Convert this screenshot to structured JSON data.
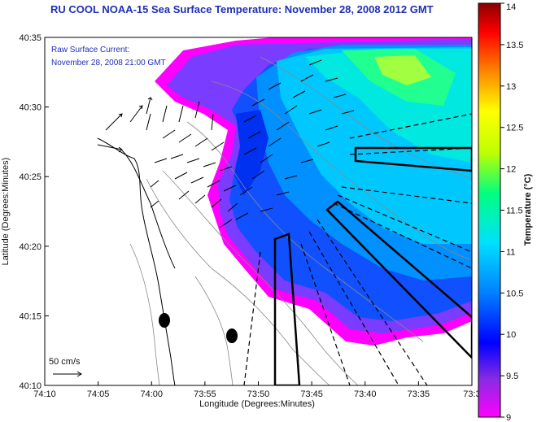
{
  "chart_data": {
    "type": "heatmap",
    "title": "RU COOL  NOAA-15  Sea Surface Temperature:  November 28, 2008 2012 GMT",
    "annotation_lines": [
      "Raw Surface Current:",
      "November 28, 2008 21:00 GMT"
    ],
    "xlabel": "Longitude (Degrees:Minutes)",
    "ylabel": "Latitude (Degrees:Minutes)",
    "x_ticks": [
      "74:10",
      "74:05",
      "74:00",
      "73:55",
      "73:50",
      "73:45",
      "73:40",
      "73:35",
      "73:3"
    ],
    "y_ticks": [
      "40:35",
      "40:30",
      "40:25",
      "40:20",
      "40:15",
      "40:10"
    ],
    "xlim": [
      "74:10",
      "73:30"
    ],
    "ylim": [
      "40:10",
      "40:35"
    ],
    "colorbar": {
      "label": "Temperature (°C)",
      "min": 9,
      "max": 14,
      "ticks": [
        "14",
        "13.5",
        "13",
        "12.5",
        "12",
        "11.5",
        "11",
        "10.5",
        "10",
        "9.5",
        "9"
      ],
      "colormap": [
        "#ff00ff",
        "#8a2be2",
        "#0000ff",
        "#0080ff",
        "#00e0ff",
        "#00ff80",
        "#c0ff00",
        "#ffff00",
        "#ff8000",
        "#ff0000",
        "#8b0000"
      ]
    },
    "scale_arrow_label": "50 cm/s",
    "grid": false
  }
}
